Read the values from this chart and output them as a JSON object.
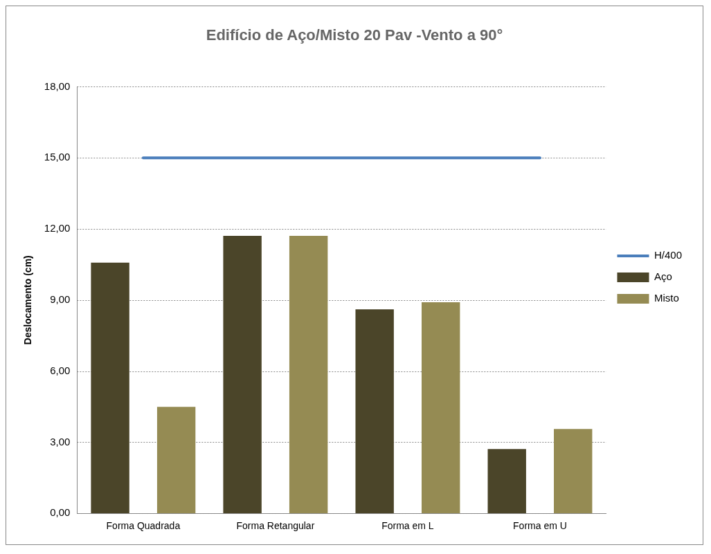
{
  "chart_data": {
    "type": "bar",
    "title": "Edifício de Aço/Misto 20 Pav -Vento a 90°",
    "ylabel": "Deslocamento (cm)",
    "categories": [
      "Forma Quadrada",
      "Forma Retangular",
      "Forma em L",
      "Forma em U"
    ],
    "series": [
      {
        "name": "Aço",
        "color": "#4b4529",
        "values": [
          10.58,
          11.71,
          8.61,
          2.71
        ]
      },
      {
        "name": "Misto",
        "color": "#958b53",
        "values": [
          4.49,
          11.71,
          8.91,
          3.56
        ]
      },
      {
        "name": "H/400",
        "type": "line",
        "color": "#4a7ebb",
        "values": [
          15,
          15,
          15,
          15
        ]
      }
    ],
    "ylim": [
      0,
      18
    ],
    "yticks": [
      {
        "value": 0,
        "label": "0,00"
      },
      {
        "value": 3,
        "label": "3,00"
      },
      {
        "value": 6,
        "label": "6,00"
      },
      {
        "value": 9,
        "label": "9,00"
      },
      {
        "value": 12,
        "label": "12,00"
      },
      {
        "value": 15,
        "label": "15,00"
      },
      {
        "value": 18,
        "label": "18,00"
      }
    ],
    "grid": "y",
    "legend": "right",
    "marker": "none",
    "line_style": "solid"
  }
}
